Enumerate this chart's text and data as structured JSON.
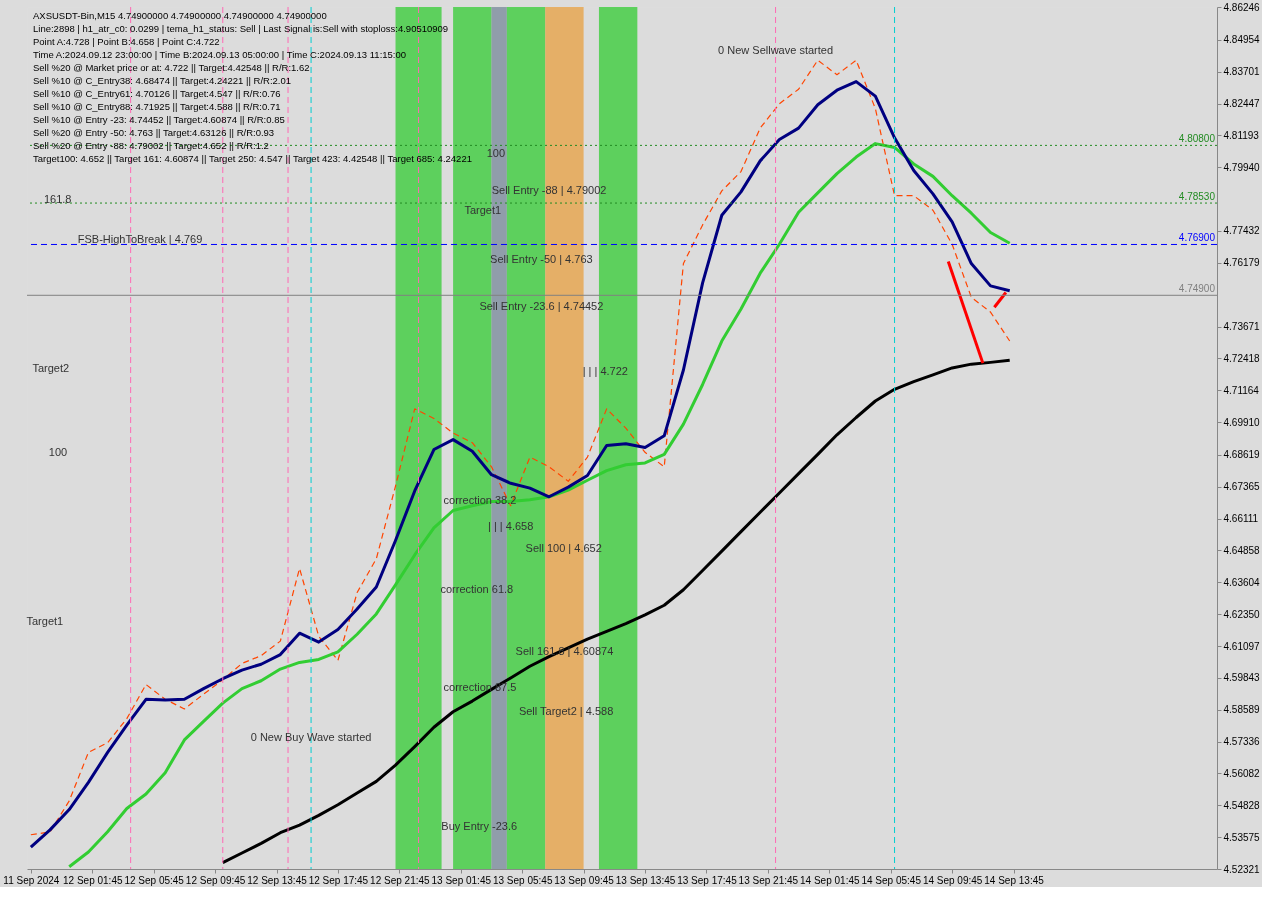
{
  "chart_data": {
    "type": "line",
    "title": "AXSUSDT-Bin,M15  4.74900000 4.74900000 4.74900000 4.74900000",
    "x": [
      "2024-09-11T21:45",
      "2024-09-11T23:00",
      "2024-09-12T00:15",
      "2024-09-12T01:30",
      "2024-09-12T02:45",
      "2024-09-12T04:00",
      "2024-09-12T05:15",
      "2024-09-12T06:30",
      "2024-09-12T07:45",
      "2024-09-12T09:00",
      "2024-09-12T10:15",
      "2024-09-12T11:30",
      "2024-09-12T12:45",
      "2024-09-12T14:00",
      "2024-09-12T15:15",
      "2024-09-12T16:30",
      "2024-09-12T17:45",
      "2024-09-12T19:00",
      "2024-09-12T20:15",
      "2024-09-12T21:30",
      "2024-09-12T22:45",
      "2024-09-13T00:00",
      "2024-09-13T01:15",
      "2024-09-13T02:30",
      "2024-09-13T03:45",
      "2024-09-13T05:00",
      "2024-09-13T06:15",
      "2024-09-13T07:30",
      "2024-09-13T08:45",
      "2024-09-13T10:00",
      "2024-09-13T11:15",
      "2024-09-13T12:30",
      "2024-09-13T13:45",
      "2024-09-13T15:00",
      "2024-09-13T16:15",
      "2024-09-13T17:30",
      "2024-09-13T18:45",
      "2024-09-13T20:00",
      "2024-09-13T21:15",
      "2024-09-13T22:30",
      "2024-09-13T23:45",
      "2024-09-14T01:00",
      "2024-09-14T02:15",
      "2024-09-14T03:30",
      "2024-09-14T04:45",
      "2024-09-14T06:00",
      "2024-09-14T07:15",
      "2024-09-14T08:30",
      "2024-09-14T09:45",
      "2024-09-14T11:00",
      "2024-09-14T12:15",
      "2024-09-14T13:30"
    ],
    "series": [
      {
        "type": "line",
        "color": "#ff4500",
        "line_style": "dashed",
        "values": [
          4.5367,
          4.5378,
          4.55,
          4.5691,
          4.5729,
          4.5824,
          4.5958,
          4.59,
          4.5862,
          4.592,
          4.5977,
          4.6041,
          4.6072,
          4.6129,
          4.6415,
          4.6148,
          4.6053,
          4.632,
          4.6453,
          4.6739,
          4.7043,
          4.7005,
          4.6948,
          4.691,
          4.6815,
          4.6662,
          4.6853,
          4.6815,
          4.6758,
          4.6853,
          4.7043,
          4.6967,
          4.6872,
          4.6815,
          4.7615,
          4.7767,
          4.7901,
          4.7977,
          4.8148,
          4.8244,
          4.8301,
          4.8415,
          4.8358,
          4.8415,
          4.8225,
          4.7882,
          4.7882,
          4.7825,
          4.7691,
          4.7482,
          4.7424,
          4.731
        ]
      },
      {
        "type": "line",
        "color": "#32cd32",
        "values": [
          null,
          null,
          4.5241,
          4.5299,
          4.5379,
          4.547,
          4.5527,
          4.5611,
          4.574,
          4.5813,
          4.5885,
          4.5942,
          4.5973,
          4.6019,
          4.6045,
          4.6057,
          4.6087,
          4.6156,
          4.6236,
          4.635,
          4.6468,
          4.6575,
          4.6643,
          4.6662,
          4.6678,
          4.6678,
          4.6685,
          4.6697,
          4.6723,
          4.6762,
          4.68,
          4.6823,
          4.683,
          4.6864,
          4.6983,
          4.7139,
          4.731,
          4.7436,
          4.7577,
          4.7691,
          4.7817,
          4.7893,
          4.7969,
          4.8034,
          4.8087,
          4.8072,
          4.8007,
          4.7958,
          4.7882,
          4.7813,
          4.7737,
          4.7695
        ]
      },
      {
        "type": "line",
        "color": "#000000",
        "values": [
          null,
          null,
          null,
          null,
          null,
          null,
          null,
          null,
          null,
          null,
          4.5257,
          4.5295,
          4.5333,
          4.5375,
          4.5405,
          4.5443,
          4.5485,
          4.5531,
          4.5577,
          4.5641,
          4.5714,
          4.579,
          4.5851,
          4.5893,
          4.5939,
          4.5984,
          4.603,
          4.6068,
          4.6102,
          4.6137,
          4.6167,
          4.6198,
          4.6232,
          4.627,
          4.6331,
          4.6407,
          4.6483,
          4.656,
          4.6636,
          4.6712,
          4.6788,
          4.6864,
          4.6941,
          4.7009,
          4.7074,
          4.712,
          4.715,
          4.7177,
          4.7204,
          4.7219,
          4.7226,
          4.7234
        ]
      },
      {
        "type": "line",
        "color": "#000080",
        "values": [
          4.5318,
          4.5386,
          4.5466,
          4.5573,
          4.5691,
          4.5798,
          4.59,
          4.5897,
          4.59,
          4.5942,
          4.5981,
          4.6015,
          4.6038,
          4.6076,
          4.616,
          4.6125,
          4.6175,
          4.6255,
          4.6342,
          4.6525,
          4.672,
          4.6883,
          4.6922,
          4.6876,
          4.6784,
          4.675,
          4.6731,
          4.6697,
          4.6735,
          4.6781,
          4.6899,
          4.6906,
          4.6891,
          4.6937,
          4.7196,
          4.7539,
          4.7805,
          4.7897,
          4.8019,
          4.8103,
          4.8148,
          4.824,
          4.8297,
          4.8331,
          4.8274,
          4.811,
          4.7981,
          4.7889,
          4.7779,
          4.7615,
          4.7527,
          4.7508
        ]
      },
      {
        "type": "line",
        "color": "#ff0000",
        "x": [
          "2024-09-14T09:30",
          "2024-09-14T11:45"
        ],
        "values": [
          4.7623,
          4.7223
        ]
      },
      {
        "type": "line",
        "color": "#ff0000",
        "x": [
          "2024-09-14T12:30",
          "2024-09-14T13:15"
        ],
        "values": [
          4.7443,
          4.7501
        ]
      }
    ],
    "xlim": [
      "2024-09-11T21:30",
      "2024-09-15T03:00"
    ],
    "xticks": [
      {
        "value": "2024-09-11T21:45",
        "label": "11 Sep 2024"
      },
      {
        "value": "2024-09-12T01:45",
        "label": "12 Sep 01:45"
      },
      {
        "value": "2024-09-12T05:45",
        "label": "12 Sep 05:45"
      },
      {
        "value": "2024-09-12T09:45",
        "label": "12 Sep 09:45"
      },
      {
        "value": "2024-09-12T13:45",
        "label": "12 Sep 13:45"
      },
      {
        "value": "2024-09-12T17:45",
        "label": "12 Sep 17:45"
      },
      {
        "value": "2024-09-12T21:45",
        "label": "12 Sep 21:45"
      },
      {
        "value": "2024-09-13T01:45",
        "label": "13 Sep 01:45"
      },
      {
        "value": "2024-09-13T05:45",
        "label": "13 Sep 05:45"
      },
      {
        "value": "2024-09-13T09:45",
        "label": "13 Sep 09:45"
      },
      {
        "value": "2024-09-13T13:45",
        "label": "13 Sep 13:45"
      },
      {
        "value": "2024-09-13T17:45",
        "label": "13 Sep 17:45"
      },
      {
        "value": "2024-09-13T21:45",
        "label": "13 Sep 21:45"
      },
      {
        "value": "2024-09-14T01:45",
        "label": "14 Sep 01:45"
      },
      {
        "value": "2024-09-14T05:45",
        "label": "14 Sep 05:45"
      },
      {
        "value": "2024-09-14T09:45",
        "label": "14 Sep 09:45"
      },
      {
        "value": "2024-09-14T13:45",
        "label": "14 Sep 13:45"
      }
    ],
    "ylim": [
      4.52321,
      4.86246
    ],
    "yticks": [
      4.86246,
      4.84954,
      4.83701,
      4.82447,
      4.81193,
      {
        "value": 4.7994,
        "label": "4.79940"
      },
      4.77432,
      4.76179,
      4.73671,
      4.72418,
      4.71164,
      {
        "value": 4.6991,
        "label": "4.69910"
      },
      4.68619,
      4.67365,
      4.66111,
      4.64858,
      4.63604,
      {
        "value": 4.6235,
        "label": "4.62350"
      },
      4.61097,
      4.59843,
      4.58589,
      4.57336,
      4.56082,
      4.54828,
      4.53575,
      4.52321
    ],
    "ref_lines": [
      {
        "axis": "y",
        "value": 4.808,
        "label": "4.80800",
        "color": "#228b22",
        "line_style": "dotted"
      },
      {
        "axis": "y",
        "value": 4.7853,
        "label": "4.78530",
        "color": "#228b22",
        "line_style": "dotted"
      },
      {
        "axis": "y",
        "value": 4.769,
        "label": "4.76900",
        "color": "#0000ff",
        "line_style": "dashed"
      },
      {
        "axis": "y",
        "value": 4.749,
        "label": "4.74900",
        "color": "#808080",
        "line_style": "solid"
      },
      {
        "axis": "x",
        "value": "2024-09-12T04:15",
        "color": "#ff69b4",
        "line_style": "dashed"
      },
      {
        "axis": "x",
        "value": "2024-09-12T10:15",
        "color": "#ff69b4",
        "line_style": "dashed"
      },
      {
        "axis": "x",
        "value": "2024-09-12T14:30",
        "color": "#ff69b4",
        "line_style": "dashed"
      },
      {
        "axis": "x",
        "value": "2024-09-12T16:00",
        "color": "#00ced1",
        "line_style": "dashed"
      },
      {
        "axis": "x",
        "value": "2024-09-12T23:00",
        "color": "#ff69b4",
        "line_style": "dashed"
      },
      {
        "axis": "x",
        "value": "2024-09-13T22:15",
        "color": "#ff69b4",
        "line_style": "dashed"
      },
      {
        "axis": "x",
        "value": "2024-09-14T06:00",
        "color": "#00ced1",
        "line_style": "dashed"
      }
    ],
    "bands": [
      {
        "axis": "x",
        "from": "2024-09-12T21:30",
        "to": "2024-09-13T00:30",
        "color": "#33cc33"
      },
      {
        "axis": "x",
        "from": "2024-09-13T01:15",
        "to": "2024-09-13T03:45",
        "color": "#33cc33"
      },
      {
        "axis": "x",
        "from": "2024-09-13T03:45",
        "to": "2024-09-13T04:45",
        "color": "#778899"
      },
      {
        "axis": "x",
        "from": "2024-09-13T04:45",
        "to": "2024-09-13T07:15",
        "color": "#33cc33"
      },
      {
        "axis": "x",
        "from": "2024-09-13T07:15",
        "to": "2024-09-13T09:45",
        "color": "#e8a040"
      },
      {
        "axis": "x",
        "from": "2024-09-13T10:45",
        "to": "2024-09-13T13:15",
        "color": "#33cc33"
      }
    ],
    "annotations": [
      "Line:2898 | h1_atr_c0: 0.0299 | tema_h1_status: Sell | Last Signal is:Sell with stoploss:4.90510909",
      "Point A:4.728 | Point B:4.658 | Point C:4.722",
      "Time A:2024.09.12 23:00:00 | Time B:2024.09.13 05:00:00 | Time C:2024.09.13 11:15:00",
      "Sell %20 @ Market price or at: 4.722 || Target:4.42548 || R/R:1.62",
      "Sell %10 @ C_Entry38: 4.68474 || Target:4.24221 || R/R:2.01",
      "Sell %10 @ C_Entry61: 4.70126 || Target:4.547 || R/R:0.76",
      "Sell %10 @ C_Entry88: 4.71925 || Target:4.588 || R/R:0.71",
      "Sell %10 @ Entry -23: 4.74452 || Target:4.60874 || R/R:0.85",
      "Sell %20 @ Entry -50: 4.763 || Target:4.63126 || R/R:0.93",
      "Sell %20 @ Entry -88: 4.79002 || Target:4.652 || R/R:1.2",
      "Target100: 4.652 || Target 161: 4.60874 || Target 250: 4.547 || Target 423: 4.42548 || Target 685: 4.24221",
      {
        "text": "0 New Sellwave started",
        "x": "2024-09-13T22:15",
        "y": 4.8453
      },
      {
        "text": "Sell Entry -88 | 4.79002",
        "x": "2024-09-13T07:30",
        "y": 4.79002
      },
      {
        "text": "Sell Entry -50 | 4.763",
        "x": "2024-09-13T07:00",
        "y": 4.763
      },
      {
        "text": "Sell Entry -23.6 | 4.74452",
        "x": "2024-09-13T07:00",
        "y": 4.74452
      },
      "| | | 4.722",
      {
        "text": "| | | 4.658",
        "x": "2024-09-13T05:00",
        "y": 4.658
      },
      "Sell 100 | 4.652",
      {
        "text": "correction 38.2",
        "x": "2024-09-13T03:00",
        "y": 4.6682
      },
      "correction 61.8",
      {
        "text": "Sell 161.8 | 4.60874",
        "x": "2024-09-13T08:30",
        "y": 4.60874
      },
      {
        "text": "correction 87.5",
        "x": "2024-09-13T03:00",
        "y": 4.5943
      },
      "Sell Target2 | 4.588",
      "Buy Entry -23.6",
      {
        "text": "0 New Buy Wave started",
        "x": "2024-09-12T16:00",
        "y": 4.5748
      },
      "FSB-HighToBreak | 4.769",
      {
        "text": "161.8",
        "x": "2024-09-11T23:30",
        "y": 4.7866
      },
      "Target1",
      "Target1",
      "Target2",
      "100",
      "100"
    ],
    "marker": "none",
    "line_style": "solid"
  }
}
